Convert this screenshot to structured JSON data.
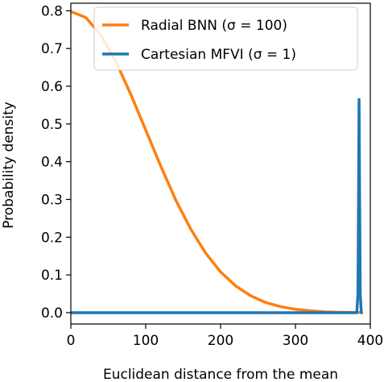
{
  "chart_data": {
    "type": "line",
    "xlabel": "Euclidean distance from the mean",
    "ylabel": "Probability density",
    "xlim": [
      0,
      400
    ],
    "ylim": [
      -0.03,
      0.82
    ],
    "xticks": [
      "0",
      "100",
      "200",
      "300",
      "400"
    ],
    "yticks": [
      "0.0",
      "0.1",
      "0.2",
      "0.3",
      "0.4",
      "0.5",
      "0.6",
      "0.7",
      "0.8"
    ],
    "grid": false,
    "legend_position": "upper-right",
    "series": [
      {
        "name": "Radial BNN (σ = 100)",
        "color": "#ff7f0e",
        "x": [
          0,
          20,
          40,
          60,
          80,
          100,
          120,
          140,
          160,
          180,
          200,
          220,
          240,
          260,
          280,
          300,
          320,
          340,
          360,
          380,
          390
        ],
        "y": [
          0.798,
          0.782,
          0.736,
          0.666,
          0.579,
          0.484,
          0.389,
          0.299,
          0.222,
          0.158,
          0.108,
          0.071,
          0.045,
          0.027,
          0.016,
          0.009,
          0.005,
          0.002,
          0.001,
          0.0005,
          0.0003
        ]
      },
      {
        "name": "Cartesian MFVI (σ = 1)",
        "color": "#1f77b4",
        "x": [
          0,
          382,
          383.5,
          384.3,
          385,
          385.8,
          386.6,
          388,
          390
        ],
        "y": [
          0,
          0,
          0.05,
          0.3,
          0.565,
          0.3,
          0.05,
          0,
          0
        ]
      }
    ]
  }
}
